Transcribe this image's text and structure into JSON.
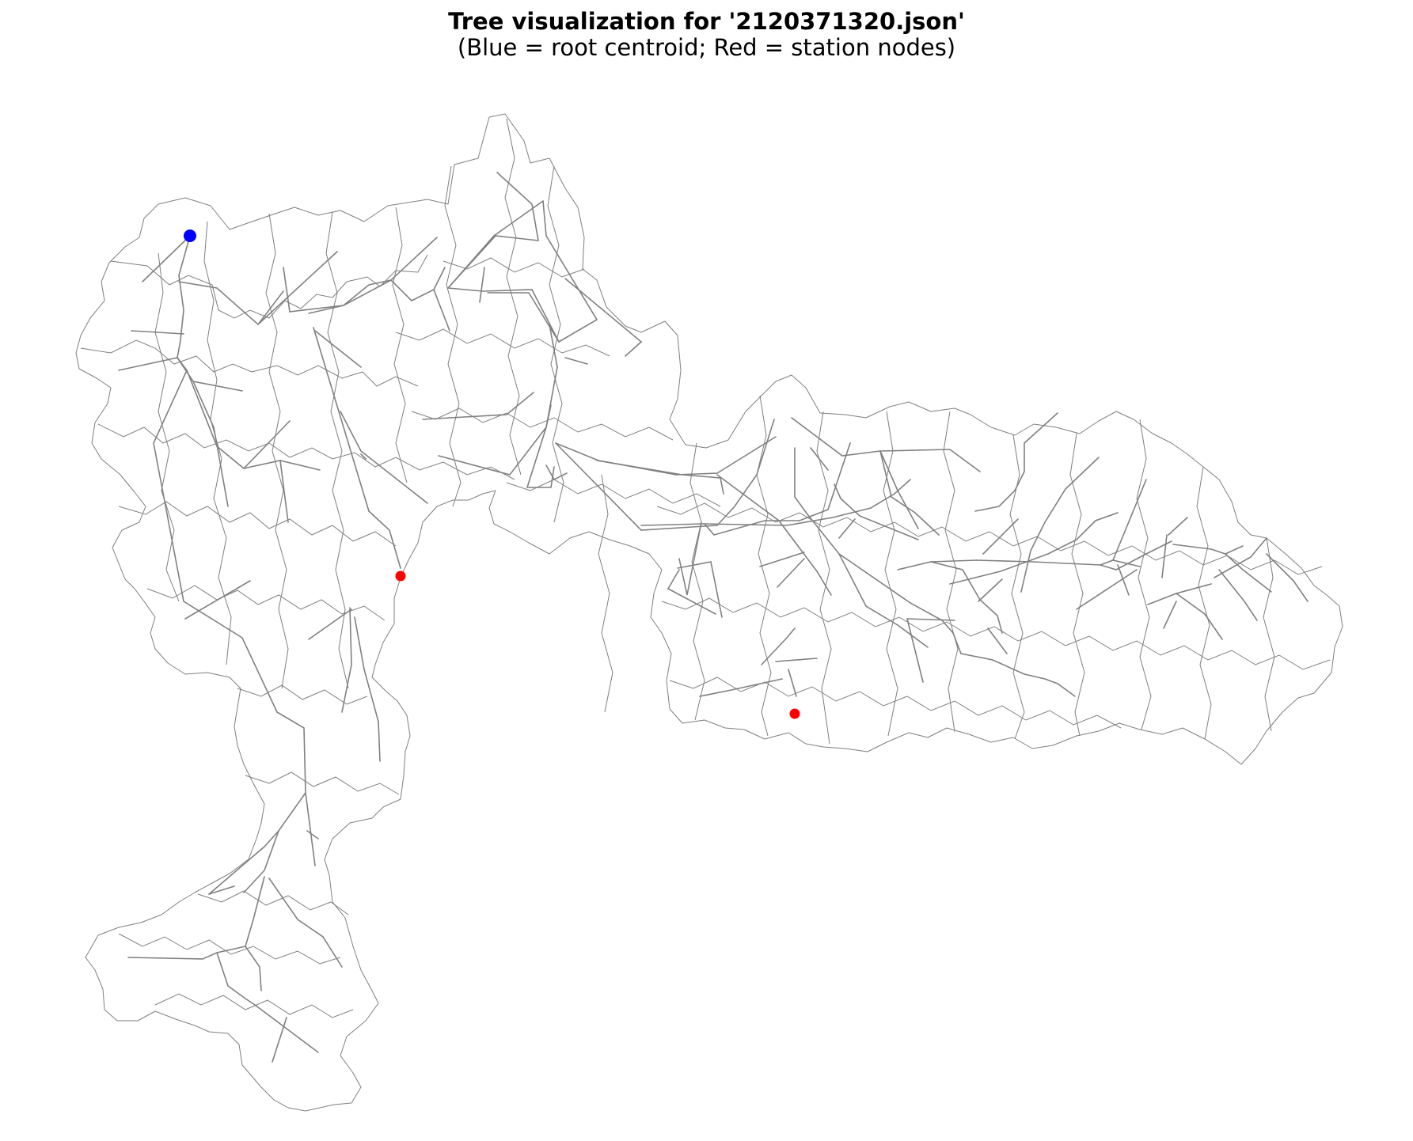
{
  "title": {
    "line1": "Tree visualization for '2120371320.json'",
    "line2": "(Blue = root centroid; Red = station nodes)"
  },
  "legend": {
    "root_color": "#0000ff",
    "station_color": "#ff0000",
    "edge_color": "#808080",
    "boundary_color": "#7f7f7f"
  },
  "map": {
    "feature_count": {
      "root_nodes": 1,
      "station_nodes": 2
    }
  }
}
